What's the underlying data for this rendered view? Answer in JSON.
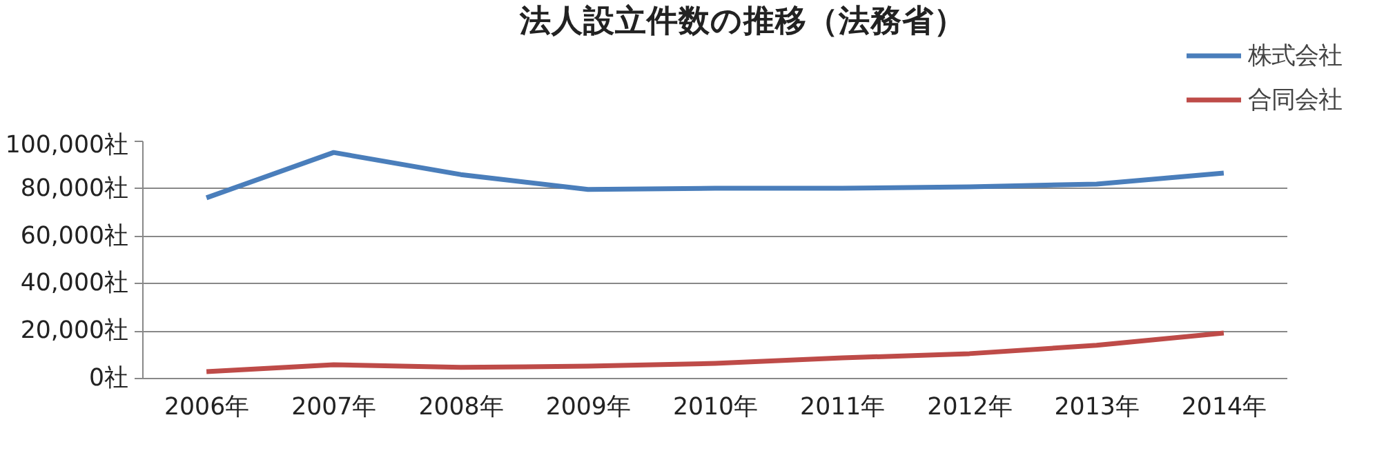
{
  "chart_data": {
    "type": "line",
    "title": "法人設立件数の推移（法務省）",
    "categories": [
      "2006年",
      "2007年",
      "2008年",
      "2009年",
      "2010年",
      "2011年",
      "2012年",
      "2013年",
      "2014年"
    ],
    "series": [
      {
        "name": "株式会社",
        "color": "#4a7ebb",
        "values": [
          76200,
          95300,
          86000,
          79700,
          80200,
          80200,
          80800,
          82000,
          86600
        ]
      },
      {
        "name": "合同会社",
        "color": "#be4b48",
        "values": [
          2900,
          5800,
          4700,
          5200,
          6400,
          8700,
          10500,
          14000,
          19200
        ]
      }
    ],
    "ylim": [
      0,
      100000
    ],
    "yticks": [
      {
        "value": 0,
        "label": "0社"
      },
      {
        "value": 20000,
        "label": "20,000社"
      },
      {
        "value": 40000,
        "label": "40,000社"
      },
      {
        "value": 60000,
        "label": "60,000社"
      },
      {
        "value": 80000,
        "label": "80,000社"
      },
      {
        "value": 100000,
        "label": "100,000社"
      }
    ],
    "grid": "y",
    "legend": "top right",
    "marker": "none",
    "line_style": "solid"
  }
}
